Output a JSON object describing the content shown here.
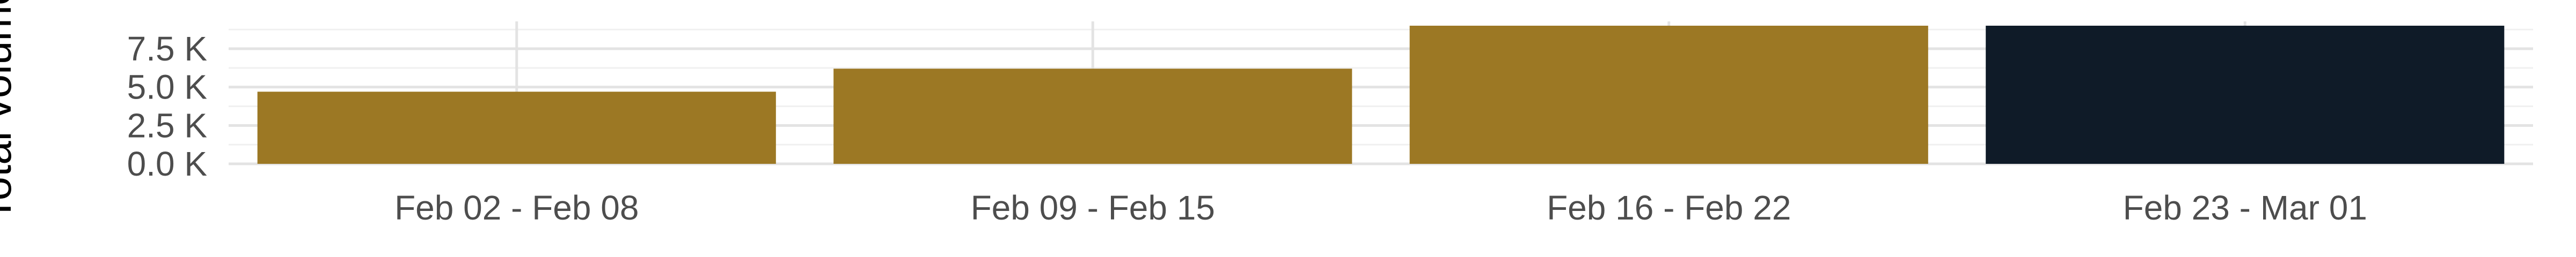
{
  "chart_data": {
    "type": "bar",
    "title": "",
    "xlabel": "",
    "ylabel": "Total volume",
    "categories": [
      "Feb 02 - Feb 08",
      "Feb 09 - Feb 15",
      "Feb 16 - Feb 22",
      "Feb 23 - Mar 01"
    ],
    "values": [
      4700,
      6200,
      9000,
      9000
    ],
    "bar_colors": [
      "#9c7824",
      "#9c7824",
      "#9c7824",
      "#0f1b28"
    ],
    "ylim": [
      0,
      9000
    ],
    "y_ticks": [
      {
        "value": 0,
        "label": "0.0 K"
      },
      {
        "value": 2500,
        "label": "2.5 K"
      },
      {
        "value": 5000,
        "label": "5.0 K"
      },
      {
        "value": 7500,
        "label": "7.5 K"
      }
    ],
    "grid": true,
    "legend": "none"
  }
}
